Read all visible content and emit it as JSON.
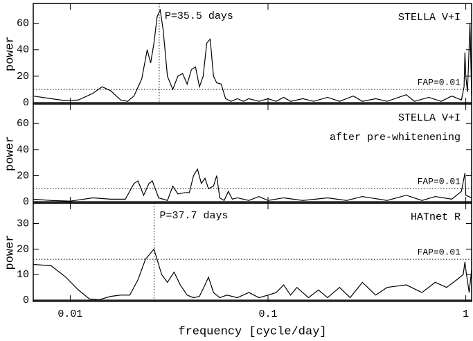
{
  "chart_data": [
    {
      "type": "line",
      "y_label": "power",
      "xscale": "log",
      "color": "#000000",
      "xlim": [
        0.0065,
        1.07
      ],
      "ylim": [
        -1,
        75
      ],
      "yticks": [
        0,
        20,
        40,
        60
      ],
      "title_lines": [
        "STELLA V+I"
      ],
      "period_line": 0.02817,
      "period_label": "P=35.5 days",
      "fap_level": 10,
      "fap_label": "FAP=0.01",
      "x": [
        0.0065,
        0.008,
        0.0095,
        0.011,
        0.013,
        0.0145,
        0.016,
        0.018,
        0.0195,
        0.021,
        0.023,
        0.0245,
        0.0255,
        0.0265,
        0.0275,
        0.0285,
        0.0295,
        0.031,
        0.033,
        0.035,
        0.037,
        0.039,
        0.041,
        0.043,
        0.045,
        0.047,
        0.049,
        0.051,
        0.053,
        0.055,
        0.058,
        0.061,
        0.065,
        0.07,
        0.075,
        0.08,
        0.09,
        0.1,
        0.11,
        0.12,
        0.13,
        0.15,
        0.17,
        0.2,
        0.23,
        0.27,
        0.3,
        0.35,
        0.4,
        0.5,
        0.55,
        0.65,
        0.75,
        0.85,
        0.95,
        0.98,
        0.99,
        1.0,
        1.02,
        1.05,
        1.07
      ],
      "values": [
        5,
        3,
        1.5,
        2,
        7,
        12,
        9,
        2,
        1,
        5,
        18,
        40,
        30,
        45,
        65,
        70,
        55,
        20,
        10,
        20,
        22,
        14,
        25,
        27,
        12,
        20,
        45,
        48,
        20,
        15,
        14,
        3,
        1,
        3,
        1,
        3,
        1,
        3,
        1,
        4,
        1,
        3,
        1,
        4,
        1,
        5,
        1,
        3,
        1,
        6,
        1,
        4,
        1,
        5,
        2,
        12,
        38,
        20,
        8,
        60,
        5
      ]
    },
    {
      "type": "line",
      "y_label": "power",
      "xscale": "log",
      "color": "#000000",
      "xlim": [
        0.0065,
        1.07
      ],
      "ylim": [
        -1,
        75
      ],
      "yticks": [
        0,
        20,
        40,
        60
      ],
      "title_lines": [
        "STELLA V+I",
        "after pre-whitenening"
      ],
      "fap_level": 10,
      "fap_label": "FAP=0.01",
      "x": [
        0.0065,
        0.008,
        0.01,
        0.013,
        0.016,
        0.019,
        0.021,
        0.022,
        0.0235,
        0.025,
        0.026,
        0.028,
        0.031,
        0.033,
        0.035,
        0.038,
        0.04,
        0.042,
        0.044,
        0.046,
        0.048,
        0.05,
        0.053,
        0.055,
        0.057,
        0.06,
        0.063,
        0.066,
        0.07,
        0.08,
        0.09,
        0.1,
        0.12,
        0.15,
        0.2,
        0.25,
        0.3,
        0.4,
        0.5,
        0.6,
        0.7,
        0.85,
        0.95,
        0.99,
        1.0,
        1.07
      ],
      "values": [
        2,
        1,
        0.5,
        3,
        2,
        2,
        14,
        16,
        5,
        14,
        16,
        3,
        1,
        12,
        6,
        7,
        7,
        20,
        25,
        14,
        18,
        10,
        12,
        20,
        3,
        1,
        8,
        2,
        3,
        1,
        4,
        1,
        3,
        1,
        3,
        1,
        4,
        1,
        5,
        1,
        4,
        2,
        8,
        22,
        5,
        3
      ]
    },
    {
      "type": "line",
      "y_label": "power",
      "xscale": "log",
      "color": "#000000",
      "xlim": [
        0.0065,
        1.07
      ],
      "ylim": [
        -0.5,
        38
      ],
      "yticks": [
        0,
        10,
        20,
        30
      ],
      "title_lines": [
        "HATnet R"
      ],
      "period_line": 0.02653,
      "period_label": "P=37.7 days",
      "fap_level": 16,
      "fap_label": "FAP=0.01",
      "x_label": "frequency [cycle/day]",
      "xticks": [
        0.01,
        0.1,
        1
      ],
      "x": [
        0.0065,
        0.008,
        0.0095,
        0.011,
        0.0125,
        0.014,
        0.016,
        0.018,
        0.02,
        0.022,
        0.024,
        0.0265,
        0.029,
        0.031,
        0.0335,
        0.036,
        0.039,
        0.042,
        0.045,
        0.048,
        0.05,
        0.053,
        0.057,
        0.062,
        0.07,
        0.08,
        0.09,
        0.1,
        0.11,
        0.12,
        0.13,
        0.14,
        0.16,
        0.18,
        0.2,
        0.23,
        0.26,
        0.3,
        0.35,
        0.4,
        0.5,
        0.6,
        0.7,
        0.8,
        0.9,
        0.97,
        0.99,
        1.0,
        1.04,
        1.07
      ],
      "values": [
        14,
        13.5,
        9,
        4,
        0.5,
        0.2,
        1.5,
        2,
        2,
        8,
        16,
        20,
        10,
        7,
        11,
        6,
        2,
        1,
        1.5,
        6,
        9,
        3,
        1,
        2,
        1,
        3,
        1,
        2,
        3,
        6,
        2,
        5,
        1,
        4,
        1,
        5,
        1,
        7,
        2,
        5,
        6,
        3,
        7,
        5,
        8,
        10,
        15,
        12,
        3,
        12
      ]
    }
  ]
}
